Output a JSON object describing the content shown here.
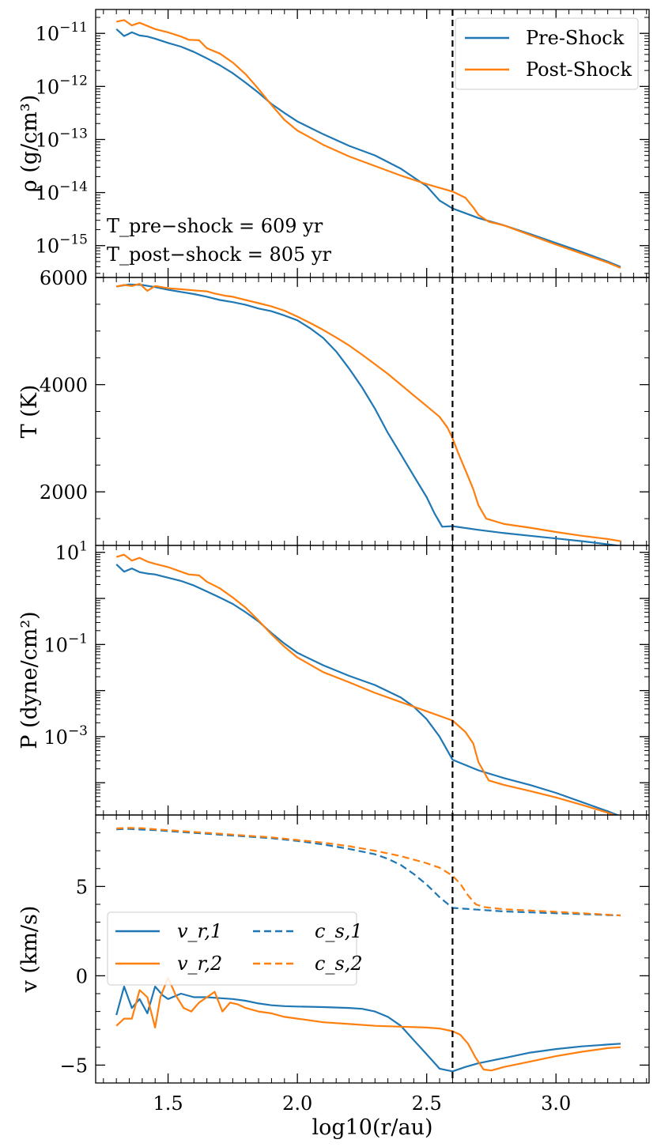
{
  "colors": {
    "pre": "#1f77b4",
    "post": "#ff7f0e",
    "shock_line": "#000000"
  },
  "shock_x": 2.6,
  "xlabel": "log10(r/au)",
  "x_ticks": [
    "1.5",
    "2.0",
    "2.5",
    "3.0"
  ],
  "annotations": {
    "t_pre": "T_pre−shock = 609 yr",
    "t_post": "T_post−shock = 805 yr"
  },
  "legend_top": {
    "pre": "Pre-Shock",
    "post": "Post-Shock"
  },
  "legend_bottom": {
    "vr1": "v_r,1",
    "vr2": "v_r,2",
    "cs1": "c_s,1",
    "cs2": "c_s,2"
  },
  "chart_data": [
    {
      "type": "line",
      "title": "",
      "ylabel": "ρ (g/cm³)",
      "yscale": "log",
      "ylim": [
        -15.6,
        -10.55
      ],
      "xlim": [
        1.22,
        3.36
      ],
      "y_ticks": [
        "10^-11",
        "10^-12",
        "10^-13",
        "10^-14",
        "10^-15"
      ],
      "series": [
        {
          "name": "Pre-Shock",
          "x": [
            1.3,
            1.33,
            1.36,
            1.39,
            1.42,
            1.45,
            1.5,
            1.55,
            1.6,
            1.65,
            1.7,
            1.75,
            1.8,
            1.85,
            1.9,
            1.95,
            2.0,
            2.1,
            2.2,
            2.3,
            2.4,
            2.5,
            2.55,
            2.6,
            2.7,
            2.8,
            2.9,
            3.0,
            3.1,
            3.2,
            3.25
          ],
          "y": [
            -10.92,
            -11.05,
            -10.98,
            -11.04,
            -11.06,
            -11.1,
            -11.18,
            -11.25,
            -11.35,
            -11.47,
            -11.6,
            -11.75,
            -11.93,
            -12.12,
            -12.33,
            -12.5,
            -12.66,
            -12.9,
            -13.12,
            -13.3,
            -13.55,
            -13.88,
            -14.15,
            -14.3,
            -14.48,
            -14.62,
            -14.78,
            -14.95,
            -15.12,
            -15.3,
            -15.4
          ]
        },
        {
          "name": "Post-Shock",
          "x": [
            1.3,
            1.33,
            1.36,
            1.39,
            1.42,
            1.45,
            1.5,
            1.55,
            1.58,
            1.62,
            1.65,
            1.7,
            1.75,
            1.8,
            1.85,
            1.9,
            1.95,
            2.0,
            2.1,
            2.2,
            2.3,
            2.4,
            2.5,
            2.6,
            2.65,
            2.68,
            2.7,
            2.74,
            2.8,
            2.9,
            3.0,
            3.1,
            3.2,
            3.25
          ],
          "y": [
            -10.78,
            -10.75,
            -10.85,
            -10.8,
            -10.86,
            -10.92,
            -10.98,
            -11.06,
            -11.12,
            -11.13,
            -11.28,
            -11.38,
            -11.55,
            -11.77,
            -12.05,
            -12.35,
            -12.63,
            -12.83,
            -13.1,
            -13.32,
            -13.5,
            -13.68,
            -13.84,
            -13.98,
            -14.1,
            -14.28,
            -14.42,
            -14.55,
            -14.62,
            -14.8,
            -14.98,
            -15.15,
            -15.32,
            -15.42
          ]
        }
      ]
    },
    {
      "type": "line",
      "title": "",
      "ylabel": "T (K)",
      "yscale": "linear",
      "ylim": [
        1000,
        6000
      ],
      "xlim": [
        1.22,
        3.36
      ],
      "y_ticks": [
        "6000",
        "4000",
        "2000"
      ],
      "series": [
        {
          "name": "Pre-Shock",
          "x": [
            1.3,
            1.35,
            1.4,
            1.45,
            1.5,
            1.55,
            1.6,
            1.65,
            1.7,
            1.75,
            1.8,
            1.85,
            1.9,
            1.95,
            2.0,
            2.05,
            2.1,
            2.15,
            2.2,
            2.25,
            2.3,
            2.35,
            2.4,
            2.45,
            2.5,
            2.53,
            2.56,
            2.6,
            2.7,
            2.8,
            2.9,
            3.0,
            3.1,
            3.2,
            3.25
          ],
          "y": [
            5830,
            5870,
            5860,
            5820,
            5770,
            5730,
            5690,
            5640,
            5580,
            5540,
            5490,
            5420,
            5370,
            5290,
            5200,
            5050,
            4870,
            4620,
            4300,
            3950,
            3550,
            3100,
            2700,
            2300,
            1900,
            1600,
            1350,
            1360,
            1290,
            1230,
            1180,
            1130,
            1080,
            1020,
            990
          ]
        },
        {
          "name": "Post-Shock",
          "x": [
            1.3,
            1.33,
            1.36,
            1.39,
            1.42,
            1.45,
            1.5,
            1.55,
            1.6,
            1.65,
            1.68,
            1.72,
            1.75,
            1.8,
            1.85,
            1.9,
            1.95,
            2.0,
            2.05,
            2.1,
            2.15,
            2.2,
            2.25,
            2.3,
            2.35,
            2.4,
            2.45,
            2.5,
            2.55,
            2.58,
            2.6,
            2.62,
            2.65,
            2.68,
            2.7,
            2.73,
            2.8,
            2.9,
            3.0,
            3.1,
            3.2,
            3.25
          ],
          "y": [
            5830,
            5860,
            5840,
            5880,
            5750,
            5840,
            5800,
            5780,
            5760,
            5740,
            5700,
            5660,
            5640,
            5580,
            5520,
            5460,
            5380,
            5270,
            5150,
            5020,
            4880,
            4730,
            4560,
            4380,
            4200,
            4000,
            3800,
            3600,
            3400,
            3200,
            3000,
            2750,
            2400,
            2050,
            1750,
            1500,
            1400,
            1330,
            1250,
            1180,
            1120,
            1080
          ]
        }
      ]
    },
    {
      "type": "line",
      "title": "",
      "ylabel": "P (dyne/cm²)",
      "yscale": "log",
      "ylim": [
        -4.7,
        1.15
      ],
      "xlim": [
        1.22,
        3.36
      ],
      "y_ticks": [
        "10^1",
        "10^-1",
        "10^-3"
      ],
      "series": [
        {
          "name": "Pre-Shock",
          "x": [
            1.3,
            1.33,
            1.36,
            1.39,
            1.42,
            1.45,
            1.5,
            1.55,
            1.6,
            1.65,
            1.7,
            1.75,
            1.8,
            1.85,
            1.9,
            1.95,
            2.0,
            2.1,
            2.2,
            2.3,
            2.4,
            2.45,
            2.5,
            2.55,
            2.6,
            2.7,
            2.8,
            2.9,
            3.0,
            3.1,
            3.2,
            3.25
          ],
          "y": [
            0.74,
            0.58,
            0.65,
            0.57,
            0.54,
            0.52,
            0.45,
            0.38,
            0.28,
            0.15,
            0.02,
            -0.12,
            -0.3,
            -0.5,
            -0.75,
            -0.98,
            -1.18,
            -1.45,
            -1.68,
            -1.88,
            -2.15,
            -2.35,
            -2.62,
            -3.0,
            -3.5,
            -3.73,
            -3.9,
            -4.05,
            -4.22,
            -4.42,
            -4.62,
            -4.73
          ]
        },
        {
          "name": "Post-Shock",
          "x": [
            1.3,
            1.33,
            1.36,
            1.39,
            1.42,
            1.45,
            1.5,
            1.55,
            1.58,
            1.62,
            1.65,
            1.7,
            1.75,
            1.8,
            1.85,
            1.9,
            1.95,
            2.0,
            2.1,
            2.2,
            2.3,
            2.4,
            2.5,
            2.6,
            2.65,
            2.68,
            2.7,
            2.74,
            2.8,
            2.9,
            3.0,
            3.1,
            3.2,
            3.25
          ],
          "y": [
            0.9,
            0.95,
            0.82,
            0.88,
            0.8,
            0.75,
            0.68,
            0.58,
            0.52,
            0.5,
            0.36,
            0.22,
            0.02,
            -0.2,
            -0.48,
            -0.78,
            -1.05,
            -1.28,
            -1.6,
            -1.82,
            -2.05,
            -2.25,
            -2.45,
            -2.65,
            -2.9,
            -3.15,
            -3.55,
            -3.95,
            -4.05,
            -4.18,
            -4.32,
            -4.48,
            -4.65,
            -4.75
          ]
        }
      ]
    },
    {
      "type": "line",
      "title": "",
      "ylabel": "v (km/s)",
      "yscale": "linear",
      "ylim": [
        -6,
        9
      ],
      "xlim": [
        1.22,
        3.36
      ],
      "y_ticks": [
        "5",
        "0",
        "−5"
      ],
      "series": [
        {
          "name": "v_r,1",
          "style": "solid",
          "color": "pre",
          "x": [
            1.3,
            1.33,
            1.36,
            1.39,
            1.42,
            1.45,
            1.48,
            1.5,
            1.55,
            1.6,
            1.65,
            1.7,
            1.75,
            1.8,
            1.85,
            1.9,
            1.95,
            2.0,
            2.1,
            2.2,
            2.25,
            2.3,
            2.35,
            2.4,
            2.45,
            2.5,
            2.55,
            2.6,
            2.65,
            2.7,
            2.8,
            2.9,
            3.0,
            3.1,
            3.2,
            3.25
          ],
          "y": [
            -2.2,
            -0.6,
            -1.8,
            -1.3,
            -2.1,
            -0.6,
            -1.1,
            -1.3,
            -1.0,
            -1.2,
            -1.2,
            -1.25,
            -1.3,
            -1.4,
            -1.55,
            -1.65,
            -1.7,
            -1.72,
            -1.75,
            -1.8,
            -1.85,
            -2.0,
            -2.3,
            -2.8,
            -3.6,
            -4.4,
            -5.2,
            -5.35,
            -5.1,
            -4.9,
            -4.6,
            -4.3,
            -4.1,
            -3.95,
            -3.85,
            -3.8
          ]
        },
        {
          "name": "v_r,2",
          "style": "solid",
          "color": "post",
          "x": [
            1.3,
            1.33,
            1.36,
            1.39,
            1.42,
            1.45,
            1.47,
            1.5,
            1.53,
            1.56,
            1.59,
            1.62,
            1.65,
            1.68,
            1.71,
            1.74,
            1.77,
            1.8,
            1.85,
            1.9,
            1.95,
            2.0,
            2.1,
            2.2,
            2.3,
            2.4,
            2.5,
            2.55,
            2.6,
            2.63,
            2.66,
            2.69,
            2.72,
            2.75,
            2.8,
            2.9,
            3.0,
            3.1,
            3.2,
            3.25
          ],
          "y": [
            -2.8,
            -2.4,
            -2.4,
            -0.8,
            -1.2,
            -2.9,
            -1.2,
            -0.1,
            -1.1,
            -1.8,
            -2.0,
            -1.5,
            -1.2,
            -0.9,
            -2.0,
            -1.5,
            -1.6,
            -1.8,
            -2.0,
            -2.1,
            -2.3,
            -2.4,
            -2.6,
            -2.7,
            -2.8,
            -2.85,
            -2.9,
            -2.95,
            -3.1,
            -3.3,
            -3.8,
            -4.6,
            -5.25,
            -5.3,
            -5.1,
            -4.8,
            -4.5,
            -4.25,
            -4.05,
            -4.0
          ]
        },
        {
          "name": "c_s,1",
          "style": "dashed",
          "color": "pre",
          "x": [
            1.3,
            1.35,
            1.4,
            1.45,
            1.5,
            1.6,
            1.7,
            1.8,
            1.9,
            2.0,
            2.1,
            2.2,
            2.3,
            2.35,
            2.4,
            2.45,
            2.5,
            2.55,
            2.6,
            2.7,
            2.8,
            2.9,
            3.0,
            3.1,
            3.2,
            3.25
          ],
          "y": [
            8.2,
            8.22,
            8.18,
            8.15,
            8.1,
            8.0,
            7.9,
            7.8,
            7.7,
            7.55,
            7.35,
            7.1,
            6.8,
            6.55,
            6.2,
            5.7,
            5.1,
            4.4,
            3.8,
            3.7,
            3.6,
            3.55,
            3.5,
            3.45,
            3.4,
            3.38
          ]
        },
        {
          "name": "c_s,2",
          "style": "dashed",
          "color": "post",
          "x": [
            1.3,
            1.35,
            1.4,
            1.45,
            1.5,
            1.6,
            1.7,
            1.8,
            1.9,
            2.0,
            2.1,
            2.2,
            2.3,
            2.4,
            2.5,
            2.55,
            2.6,
            2.63,
            2.66,
            2.69,
            2.72,
            2.75,
            2.8,
            2.9,
            3.0,
            3.1,
            3.2,
            3.25
          ],
          "y": [
            8.25,
            8.28,
            8.26,
            8.2,
            8.15,
            8.05,
            7.95,
            7.85,
            7.75,
            7.6,
            7.45,
            7.25,
            7.0,
            6.7,
            6.3,
            6.05,
            5.6,
            5.15,
            4.5,
            4.0,
            3.85,
            3.8,
            3.72,
            3.65,
            3.58,
            3.5,
            3.42,
            3.38
          ]
        }
      ]
    }
  ]
}
